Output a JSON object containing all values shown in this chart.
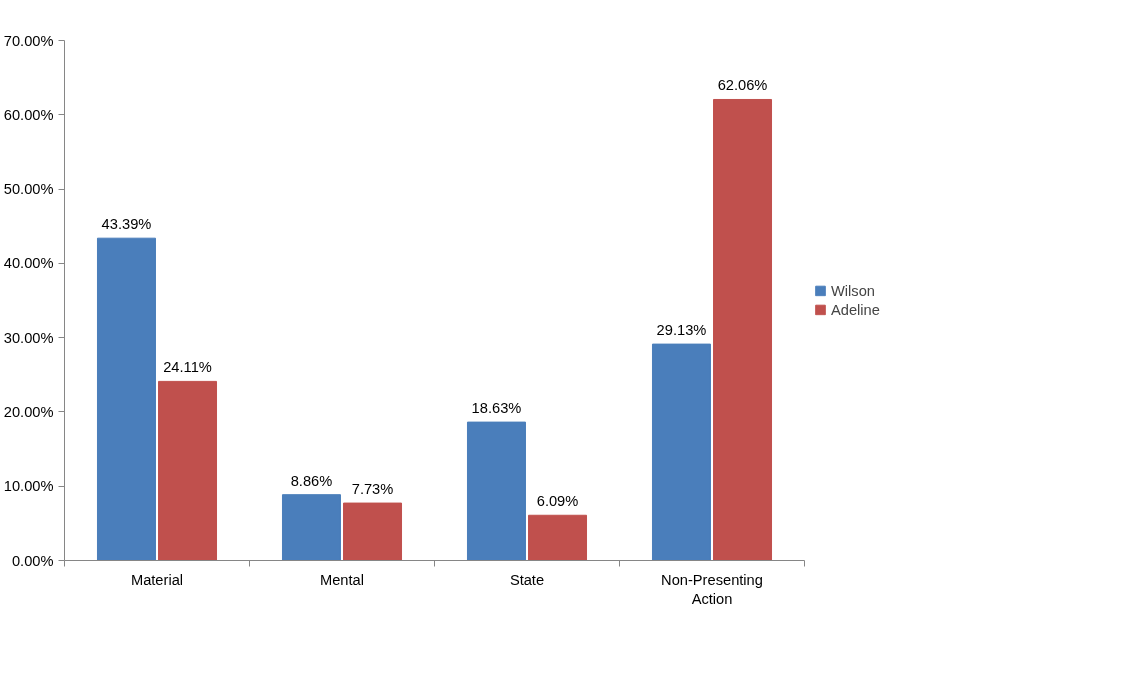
{
  "chart_data": {
    "type": "bar",
    "categories": [
      "Material",
      "Mental",
      "State",
      "Non-Presenting Action"
    ],
    "series": [
      {
        "name": "Wilson",
        "color": "#4a7ebb",
        "values": [
          43.39,
          8.86,
          18.63,
          29.13
        ],
        "value_labels": [
          "43.39%",
          "8.86%",
          "18.63%",
          "29.13%"
        ]
      },
      {
        "name": "Adeline",
        "color": "#c0504d",
        "values": [
          24.11,
          7.73,
          6.09,
          62.06
        ],
        "value_labels": [
          "24.11%",
          "7.73%",
          "6.09%",
          "62.06%"
        ]
      }
    ],
    "ylim": [
      0,
      70
    ],
    "yticks": [
      {
        "value": 0,
        "label": "0.00%"
      },
      {
        "value": 10,
        "label": "10.00%"
      },
      {
        "value": 20,
        "label": "20.00%"
      },
      {
        "value": 30,
        "label": "30.00%"
      },
      {
        "value": 40,
        "label": "40.00%"
      },
      {
        "value": 50,
        "label": "50.00%"
      },
      {
        "value": 60,
        "label": "60.00%"
      },
      {
        "value": 70,
        "label": "70.00%"
      }
    ],
    "grid": false,
    "legend": "right"
  }
}
